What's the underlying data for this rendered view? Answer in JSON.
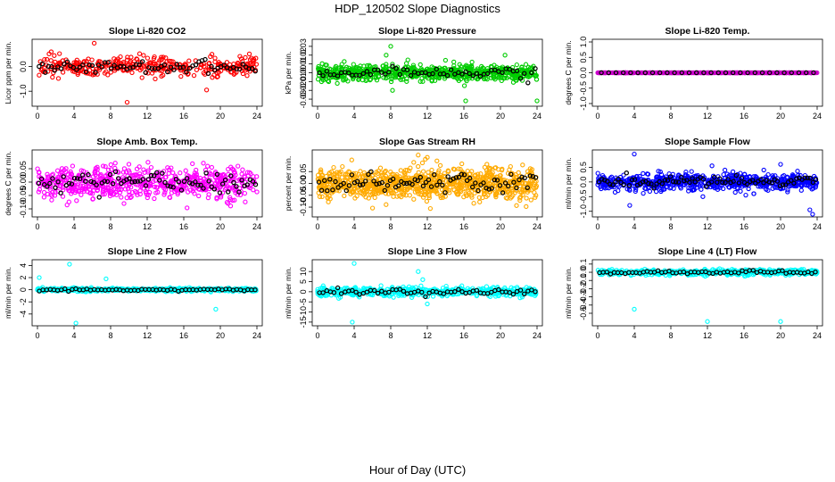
{
  "figure": {
    "title": "HDP_120502  Slope Diagnostics",
    "xlabel": "Hour of Day (UTC)"
  },
  "chart_data": [
    {
      "type": "scatter",
      "title": "Slope Li-820 CO2",
      "ylabel": "Licor ppm per min.",
      "color": "#ff0000",
      "xlim": [
        0,
        24
      ],
      "xticks": [
        0,
        4,
        8,
        12,
        16,
        20,
        24
      ],
      "ylim": [
        -1.5,
        1.0
      ],
      "yticks": [
        -1.0,
        0.0
      ],
      "ytick_labels": [
        "-1.0",
        "0.0"
      ],
      "spread": 0.35,
      "outliers": [
        [
          6.2,
          0.95
        ],
        [
          9.8,
          -1.45
        ],
        [
          18.5,
          -0.95
        ],
        [
          1.5,
          0.6
        ]
      ],
      "n_points": 360,
      "black_n": 70
    },
    {
      "type": "scatter",
      "title": "Slope Li-820 Pressure",
      "ylabel": "kPa per min.",
      "color": "#00cc00",
      "xlim": [
        0,
        24
      ],
      "xticks": [
        0,
        4,
        8,
        12,
        16,
        20,
        24
      ],
      "ylim": [
        -0.035,
        0.035
      ],
      "yticks": [
        -0.03,
        -0.02,
        -0.01,
        0.0,
        0.01,
        0.02,
        0.03
      ],
      "ytick_labels": [
        "-0.03",
        "-0.02",
        "-0.01",
        "0.00",
        "0.01",
        "0.02",
        "0.03"
      ],
      "spread": 0.008,
      "outliers": [
        [
          8.0,
          0.03
        ],
        [
          7.5,
          0.02
        ],
        [
          8.2,
          -0.02
        ],
        [
          16.2,
          -0.032
        ],
        [
          24.0,
          -0.032
        ],
        [
          20.5,
          0.02
        ]
      ],
      "n_points": 700,
      "black_n": 60
    },
    {
      "type": "scatter",
      "title": "Slope Li-820 Temp.",
      "ylabel": "degrees C per min.",
      "color": "#cc00cc",
      "xlim": [
        0,
        24
      ],
      "xticks": [
        0,
        4,
        8,
        12,
        16,
        20,
        24
      ],
      "ylim": [
        -1.0,
        1.0
      ],
      "yticks": [
        -1.0,
        -0.5,
        0.0,
        0.5,
        1.0
      ],
      "ytick_labels": [
        "-1.0",
        "-0.5",
        "0.0",
        "0.5",
        "1.0"
      ],
      "spread": 0.0,
      "outliers": [],
      "n_points": 600,
      "black_n": 30
    },
    {
      "type": "scatter",
      "title": "Slope Amb. Box Temp.",
      "ylabel": "degrees C per min.",
      "color": "#ff00ff",
      "xlim": [
        0,
        24
      ],
      "xticks": [
        0,
        4,
        8,
        12,
        16,
        20,
        24
      ],
      "ylim": [
        -0.12,
        0.11
      ],
      "yticks": [
        -0.1,
        -0.05,
        0.0,
        0.05
      ],
      "ytick_labels": [
        "-0.10",
        "-0.05",
        "0.00",
        "0.05"
      ],
      "spread": 0.055,
      "outliers": [],
      "n_points": 620,
      "black_n": 80
    },
    {
      "type": "scatter",
      "title": "Slope Gas Stream RH",
      "ylabel": "percent per min.",
      "color": "#ffaa00",
      "xlim": [
        0,
        24
      ],
      "xticks": [
        0,
        4,
        8,
        12,
        16,
        20,
        24
      ],
      "ylim": [
        -0.13,
        0.13
      ],
      "yticks": [
        -0.1,
        -0.05,
        0.0,
        0.05
      ],
      "ytick_labels": [
        "-0.10",
        "-0.05",
        "0.00",
        "0.05"
      ],
      "spread": 0.06,
      "outliers": [
        [
          11.0,
          0.12
        ],
        [
          12.0,
          0.11
        ]
      ],
      "n_points": 900,
      "black_n": 80
    },
    {
      "type": "scatter",
      "title": "Slope Sample Flow",
      "ylabel": "ml/min per min.",
      "color": "#0000ff",
      "xlim": [
        0,
        24
      ],
      "xticks": [
        0,
        4,
        8,
        12,
        16,
        20,
        24
      ],
      "ylim": [
        -1.1,
        1.0
      ],
      "yticks": [
        -1.0,
        -0.5,
        0.0,
        0.5
      ],
      "ytick_labels": [
        "-1.0",
        "-0.5",
        "0.0",
        "0.5"
      ],
      "spread": 0.25,
      "outliers": [
        [
          4.0,
          0.95
        ],
        [
          3.5,
          -0.8
        ],
        [
          23.5,
          -1.1
        ],
        [
          23.2,
          -0.95
        ],
        [
          11.5,
          -0.5
        ],
        [
          12.5,
          0.55
        ],
        [
          20.0,
          0.6
        ],
        [
          16.2,
          -0.45
        ]
      ],
      "n_points": 650,
      "black_n": 80
    },
    {
      "type": "scatter",
      "title": "Slope Line 2 Flow",
      "ylabel": "ml/min per min.",
      "color": "#00ffff",
      "xlim": [
        0,
        24
      ],
      "xticks": [
        0,
        4,
        8,
        12,
        16,
        20,
        24
      ],
      "ylim": [
        -5.5,
        4.5
      ],
      "yticks": [
        -4,
        -2,
        0,
        2,
        4
      ],
      "ytick_labels": [
        "-4",
        "-2",
        "0",
        "2",
        "4"
      ],
      "spread": 0.25,
      "outliers": [
        [
          3.5,
          4.2
        ],
        [
          4.2,
          -5.5
        ],
        [
          19.5,
          -3.2
        ],
        [
          0.2,
          2.0
        ],
        [
          7.5,
          1.8
        ]
      ],
      "n_points": 500,
      "black_n": 60
    },
    {
      "type": "scatter",
      "title": "Slope Line 3 Flow",
      "ylabel": "ml/min per min.",
      "color": "#00ffff",
      "xlim": [
        0,
        24
      ],
      "xticks": [
        0,
        4,
        8,
        12,
        16,
        20,
        24
      ],
      "ylim": [
        -15.5,
        14.5
      ],
      "yticks": [
        -15,
        -10,
        -5,
        0,
        5,
        10
      ],
      "ytick_labels": [
        "-15",
        "-10",
        "-5",
        "0",
        "5",
        "10"
      ],
      "spread": 2.0,
      "outliers": [
        [
          4.0,
          14.0
        ],
        [
          3.8,
          -15.0
        ],
        [
          11.0,
          10.0
        ],
        [
          11.5,
          6.0
        ],
        [
          12.0,
          -6.0
        ]
      ],
      "n_points": 500,
      "black_n": 60
    },
    {
      "type": "scatter",
      "title": "Slope Line 4 (LT) Flow",
      "ylabel": "ml/min per min.",
      "color": "#00ffff",
      "xlim": [
        0,
        24
      ],
      "xticks": [
        0,
        4,
        8,
        12,
        16,
        20,
        24
      ],
      "ylim": [
        -0.62,
        0.12
      ],
      "yticks": [
        -0.5,
        -0.4,
        -0.3,
        -0.2,
        -0.1,
        0.0,
        0.1
      ],
      "ytick_labels": [
        "-0.5",
        "-0.4",
        "-0.3",
        "-0.2",
        "-0.1",
        "0.0",
        "0.1"
      ],
      "spread": 0.03,
      "outliers": [
        [
          4.0,
          -0.45
        ],
        [
          12.0,
          -0.6
        ],
        [
          20.0,
          -0.6
        ]
      ],
      "n_points": 500,
      "black_n": 60
    }
  ]
}
